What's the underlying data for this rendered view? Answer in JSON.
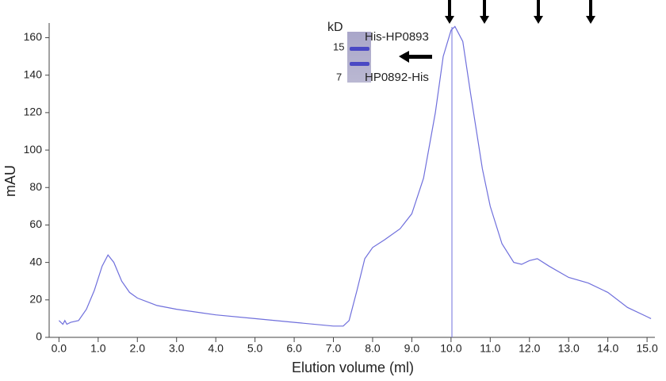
{
  "chart_data": {
    "type": "line",
    "x_label": "Elution volume (ml)",
    "y_label": "mAU",
    "color": "#6f6fdc",
    "x": [
      0,
      0.1,
      0.15,
      0.2,
      0.3,
      0.5,
      0.7,
      0.9,
      1.1,
      1.25,
      1.4,
      1.6,
      1.8,
      2.0,
      2.5,
      3.0,
      4.0,
      5.0,
      6.0,
      7.0,
      7.25,
      7.4,
      7.6,
      7.8,
      8.0,
      8.3,
      8.7,
      9.0,
      9.3,
      9.6,
      9.8,
      10.0,
      10.1,
      10.3,
      10.5,
      10.8,
      11.0,
      11.3,
      11.6,
      11.8,
      12.0,
      12.2,
      12.5,
      13.0,
      13.5,
      14.0,
      14.5,
      15.0,
      15.1
    ],
    "values": [
      9,
      7,
      9,
      7,
      8,
      9,
      15,
      25,
      38,
      44,
      40,
      30,
      24,
      21,
      17,
      15,
      12,
      10,
      8,
      6,
      6,
      9,
      25,
      42,
      48,
      52,
      58,
      66,
      85,
      120,
      150,
      164,
      166,
      158,
      130,
      90,
      70,
      50,
      40,
      39,
      41,
      42,
      38,
      32,
      29,
      24,
      16,
      11,
      10
    ],
    "xlim": [
      -0.25,
      15.2
    ],
    "ylim": [
      0,
      167
    ],
    "xticks": [
      {
        "value": 0,
        "label": "0.0"
      },
      {
        "value": 1,
        "label": "1.0"
      },
      {
        "value": 2,
        "label": "2.0"
      },
      {
        "value": 3,
        "label": "3.0"
      },
      {
        "value": 4,
        "label": "4.0"
      },
      {
        "value": 5,
        "label": "5.0"
      },
      {
        "value": 6,
        "label": "6.0"
      },
      {
        "value": 7,
        "label": "7.0"
      },
      {
        "value": 8,
        "label": "8.0"
      },
      {
        "value": 9,
        "label": "9.0"
      },
      {
        "value": 10,
        "label": "10.0"
      },
      {
        "value": 11,
        "label": "11.0"
      },
      {
        "value": 12,
        "label": "12.0"
      },
      {
        "value": 13,
        "label": "13.0"
      },
      {
        "value": 14,
        "label": "14.0"
      },
      {
        "value": 15,
        "label": "15.0"
      }
    ],
    "yticks": [
      0,
      20,
      40,
      60,
      80,
      100,
      120,
      140,
      160
    ],
    "annotations": [
      "kD",
      "15",
      "7",
      "His-HP0893",
      "HP0892-His"
    ]
  }
}
